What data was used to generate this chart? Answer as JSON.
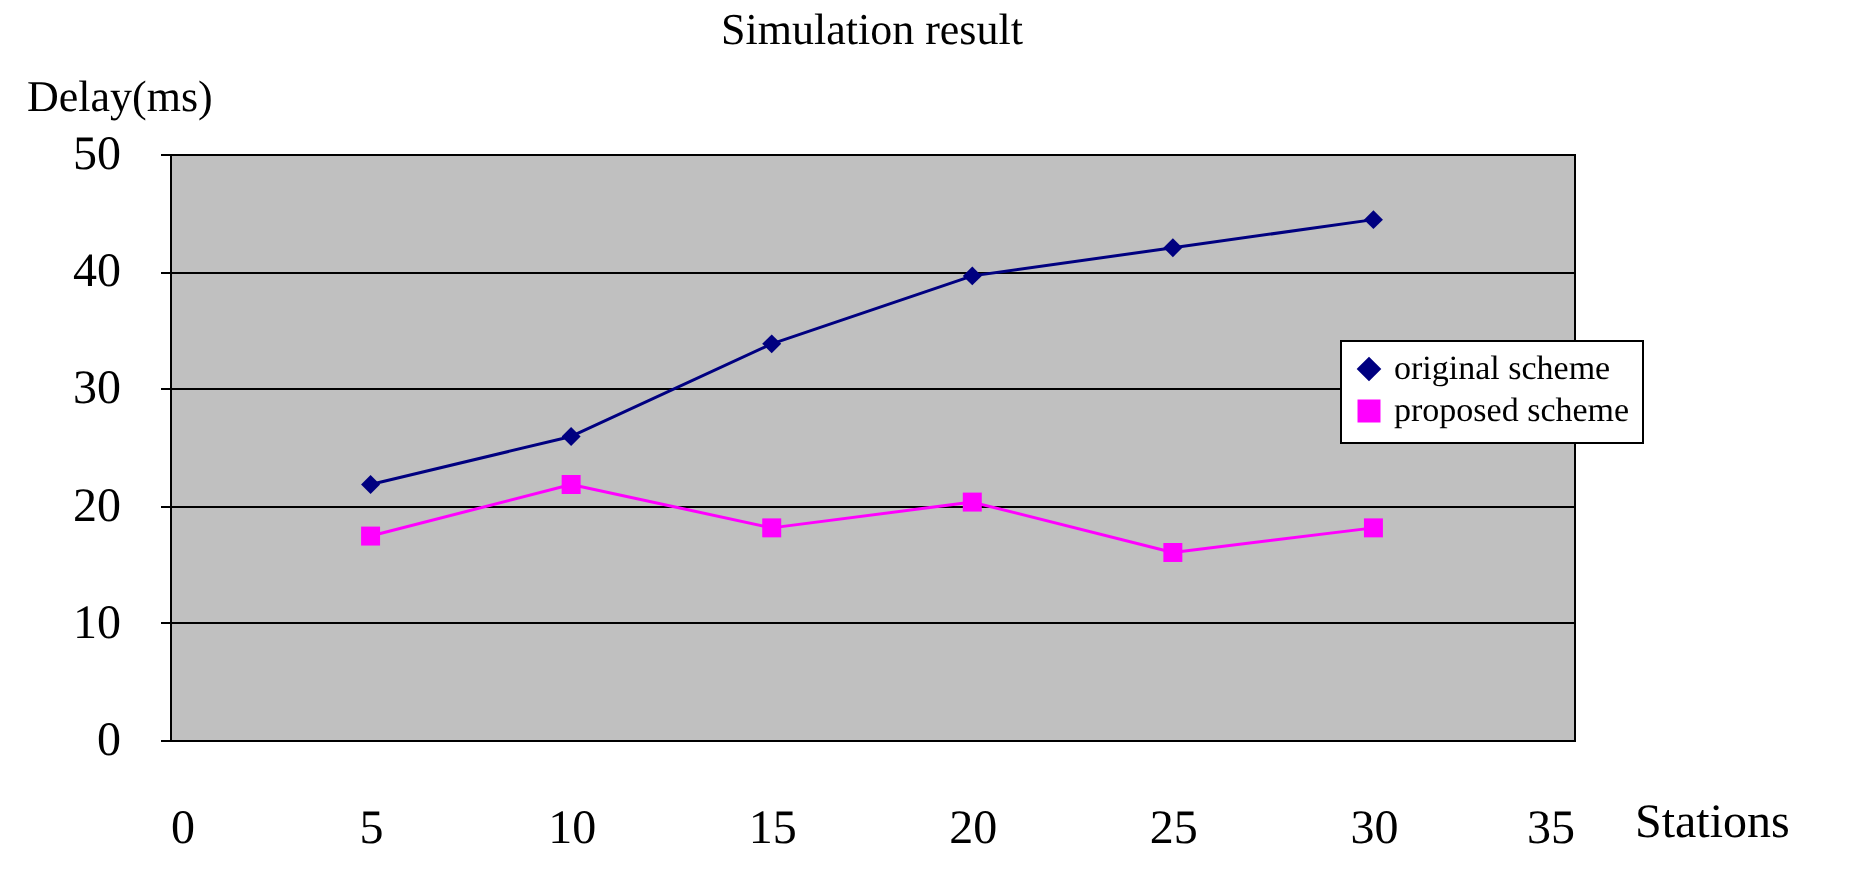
{
  "chart_data": {
    "type": "line",
    "title": "Simulation result",
    "xlabel": "Stations",
    "ylabel": "Delay(ms)",
    "x": [
      5,
      10,
      15,
      20,
      25,
      30
    ],
    "series": [
      {
        "name": "original scheme",
        "color": "#000080",
        "marker": "diamond",
        "values": [
          21.8,
          25.9,
          33.8,
          39.6,
          42.0,
          44.4
        ]
      },
      {
        "name": "proposed scheme",
        "color": "#ff00ff",
        "marker": "square",
        "values": [
          17.4,
          21.8,
          18.1,
          20.3,
          16.0,
          18.1
        ]
      }
    ],
    "xlim": [
      0,
      35
    ],
    "xticks": [
      0,
      5,
      10,
      15,
      20,
      25,
      30,
      35
    ],
    "ylim": [
      0,
      50
    ],
    "yticks": [
      0,
      10,
      20,
      30,
      40,
      50
    ],
    "grid": "y",
    "legend": "right",
    "line_style": "solid"
  }
}
